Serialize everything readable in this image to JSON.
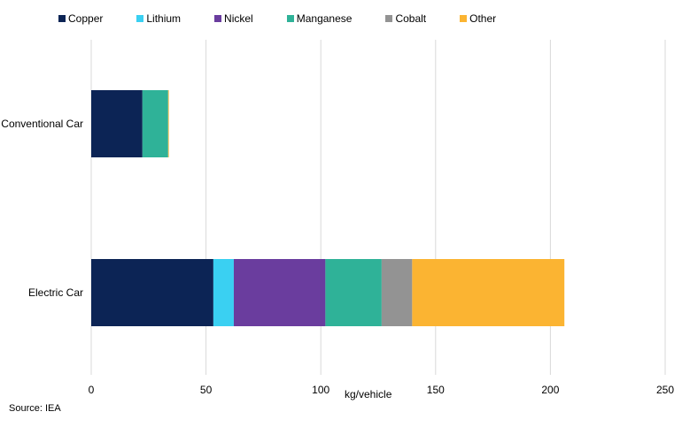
{
  "chart_data": {
    "type": "bar",
    "orientation": "horizontal",
    "stacked": true,
    "categories": [
      "Conventional Car",
      "Electric Car"
    ],
    "series": [
      {
        "name": "Copper",
        "color": "#0c2455",
        "values": [
          22.3,
          53.2
        ]
      },
      {
        "name": "Lithium",
        "color": "#3ad0f2",
        "values": [
          0,
          8.9
        ]
      },
      {
        "name": "Nickel",
        "color": "#6a3d9e",
        "values": [
          0,
          39.9
        ]
      },
      {
        "name": "Manganese",
        "color": "#2fb298",
        "values": [
          11.2,
          24.5
        ]
      },
      {
        "name": "Cobalt",
        "color": "#939393",
        "values": [
          0,
          13.3
        ]
      },
      {
        "name": "Other",
        "color": "#fbb432",
        "values": [
          0.3,
          66.3
        ]
      }
    ],
    "xlabel": "kg/vehicle",
    "xlim": [
      0,
      250
    ],
    "xticks": [
      0,
      50,
      100,
      150,
      200,
      250
    ],
    "grid": "vertical",
    "legend_position": "top",
    "source": "Source: IEA"
  }
}
